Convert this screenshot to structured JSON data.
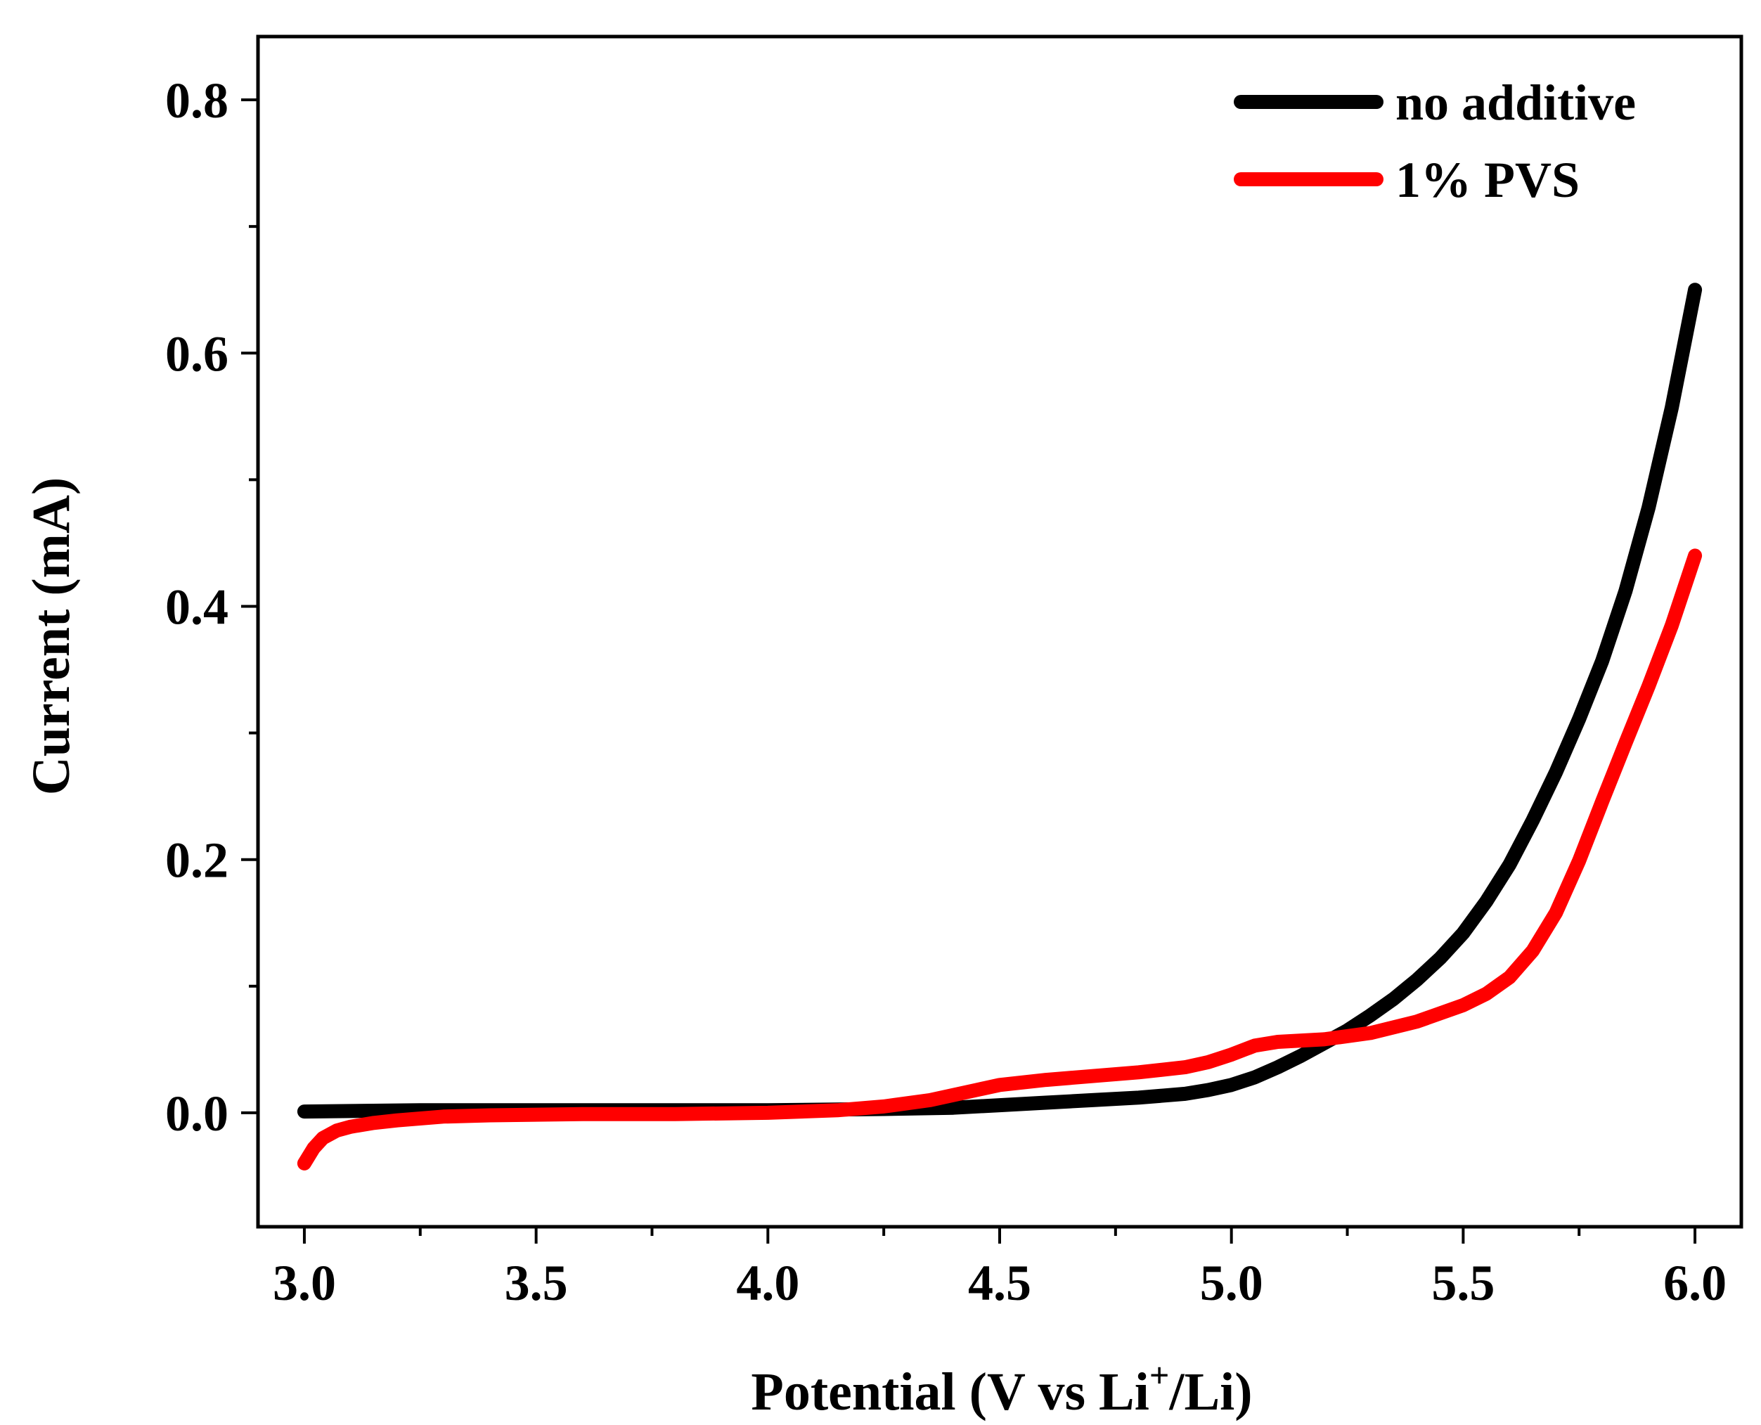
{
  "chart_data": {
    "type": "line",
    "title": "",
    "xlabel": "Potential (V vs Li",
    "xlabel_superscript": "+",
    "xlabel_suffix": "/Li)",
    "ylabel": "Current (mA)",
    "xlim": [
      2.9,
      6.1
    ],
    "ylim": [
      -0.09,
      0.85
    ],
    "x_ticks": [
      3.0,
      3.5,
      4.0,
      4.5,
      5.0,
      5.5,
      6.0
    ],
    "x_tick_labels": [
      "3.0",
      "3.5",
      "4.0",
      "4.5",
      "5.0",
      "5.5",
      "6.0"
    ],
    "y_ticks": [
      0.0,
      0.2,
      0.4,
      0.6,
      0.8
    ],
    "y_tick_labels": [
      "0.0",
      "0.2",
      "0.4",
      "0.6",
      "0.8"
    ],
    "x_minor_step": 0.25,
    "y_minor_step": 0.1,
    "grid": false,
    "legend_position": "top-right",
    "series": [
      {
        "name": "no additive",
        "color": "#000000",
        "x": [
          3.0,
          3.25,
          3.5,
          3.75,
          4.0,
          4.25,
          4.4,
          4.5,
          4.6,
          4.7,
          4.8,
          4.9,
          4.95,
          5.0,
          5.05,
          5.1,
          5.15,
          5.2,
          5.25,
          5.3,
          5.35,
          5.4,
          5.45,
          5.5,
          5.55,
          5.6,
          5.65,
          5.7,
          5.75,
          5.8,
          5.85,
          5.9,
          5.95,
          6.0
        ],
        "values": [
          0.001,
          0.002,
          0.002,
          0.002,
          0.002,
          0.003,
          0.004,
          0.006,
          0.008,
          0.01,
          0.012,
          0.015,
          0.018,
          0.022,
          0.028,
          0.036,
          0.045,
          0.055,
          0.065,
          0.077,
          0.09,
          0.105,
          0.122,
          0.142,
          0.167,
          0.196,
          0.231,
          0.269,
          0.311,
          0.357,
          0.412,
          0.478,
          0.557,
          0.65
        ]
      },
      {
        "name": "1% PVS",
        "color": "#ff0000",
        "x": [
          3.0,
          3.02,
          3.04,
          3.07,
          3.1,
          3.15,
          3.2,
          3.3,
          3.4,
          3.6,
          3.8,
          4.0,
          4.15,
          4.25,
          4.35,
          4.45,
          4.5,
          4.6,
          4.7,
          4.8,
          4.9,
          4.95,
          5.0,
          5.05,
          5.1,
          5.2,
          5.3,
          5.4,
          5.5,
          5.55,
          5.6,
          5.65,
          5.7,
          5.75,
          5.8,
          5.85,
          5.9,
          5.95,
          6.0
        ],
        "values": [
          -0.04,
          -0.028,
          -0.02,
          -0.014,
          -0.011,
          -0.008,
          -0.006,
          -0.003,
          -0.002,
          -0.001,
          -0.001,
          0.0,
          0.002,
          0.005,
          0.01,
          0.018,
          0.022,
          0.026,
          0.029,
          0.032,
          0.036,
          0.04,
          0.046,
          0.053,
          0.056,
          0.058,
          0.063,
          0.072,
          0.085,
          0.094,
          0.107,
          0.128,
          0.158,
          0.199,
          0.246,
          0.292,
          0.337,
          0.385,
          0.44
        ]
      }
    ]
  }
}
